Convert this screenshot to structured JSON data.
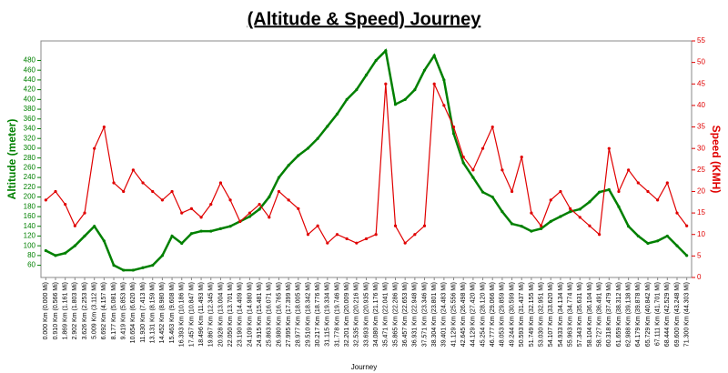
{
  "chart_data": {
    "type": "line",
    "title": "(Altitude & Speed) Journey",
    "x_label": "Journey",
    "y_label": "Altitude (meter)",
    "y2_label": "Speed (KMH)",
    "categories": [
      "0.000 Km (0.000 Mi)",
      "0.910 Km (0.566 Mi)",
      "1.869 Km (1.161 Mi)",
      "2.902 Km (1.803 Mi)",
      "3.626 Km (2.253 Mi)",
      "5.009 Km (3.112 Mi)",
      "6.692 Km (4.157 Mi)",
      "8.177 Km (5.081 Mi)",
      "9.419 Km (5.853 Mi)",
      "10.654 Km (6.620 Mi)",
      "11.930 Km (7.413 Mi)",
      "13.131 Km (8.159 Mi)",
      "14.452 Km (8.980 Mi)",
      "15.463 Km (9.608 Mi)",
      "16.393 Km (10.186 Mi)",
      "17.457 Km (10.847 Mi)",
      "18.496 Km (11.493 Mi)",
      "19.867 Km (12.345 Mi)",
      "20.928 Km (13.004 Mi)",
      "22.050 Km (13.701 Mi)",
      "23.190 Km (14.409 Mi)",
      "24.109 Km (14.980 Mi)",
      "24.915 Km (15.481 Mi)",
      "25.863 Km (16.071 Mi)",
      "26.980 Km (16.765 Mi)",
      "27.995 Km (17.399 Mi)",
      "28.977 Km (18.005 Mi)",
      "29.510 Km (18.342 Mi)",
      "30.217 Km (18.776 Mi)",
      "31.115 Km (19.334 Mi)",
      "31.778 Km (19.746 Mi)",
      "32.201 Km (20.009 Mi)",
      "32.535 Km (20.216 Mi)",
      "33.693 Km (20.935 Mi)",
      "34.080 Km (21.176 Mi)",
      "35.471 Km (22.041 Mi)",
      "35.865 Km (22.286 Mi)",
      "36.457 Km (22.653 Mi)",
      "36.931 Km (22.948 Mi)",
      "37.571 Km (23.346 Mi)",
      "38.304 Km (23.801 Mi)",
      "39.401 Km (24.483 Mi)",
      "41.129 Km (25.556 Mi)",
      "42.645 Km (26.498 Mi)",
      "44.129 Km (27.420 Mi)",
      "45.254 Km (28.120 Mi)",
      "46.777 Km (29.066 Mi)",
      "48.053 Km (29.859 Mi)",
      "49.244 Km (30.599 Mi)",
      "50.593 Km (31.437 Mi)",
      "51.749 Km (32.155 Mi)",
      "53.030 Km (32.951 Mi)",
      "54.107 Km (33.620 Mi)",
      "54.933 Km (34.134 Mi)",
      "55.963 Km (34.774 Mi)",
      "57.343 Km (35.631 Mi)",
      "58.104 Km (36.104 Mi)",
      "58.727 Km (36.491 Mi)",
      "60.318 Km (37.479 Mi)",
      "61.659 Km (38.312 Mi)",
      "62.988 Km (39.138 Mi)",
      "64.179 Km (39.878 Mi)",
      "65.729 Km (40.842 Mi)",
      "67.111 Km (41.701 Mi)",
      "68.444 Km (42.529 Mi)",
      "69.600 Km (43.248 Mi)",
      "71.300 Km (44.303 Mi)"
    ],
    "series": [
      {
        "name": "Altitude",
        "color": "#008000",
        "axis": "y",
        "values": [
          90,
          80,
          85,
          100,
          120,
          140,
          110,
          60,
          50,
          50,
          55,
          60,
          80,
          120,
          105,
          125,
          130,
          130,
          135,
          140,
          150,
          160,
          175,
          200,
          240,
          265,
          285,
          300,
          320,
          345,
          370,
          400,
          420,
          450,
          480,
          500,
          390,
          400,
          420,
          460,
          490,
          440,
          330,
          270,
          240,
          210,
          200,
          170,
          145,
          140,
          130,
          135,
          150,
          160,
          170,
          175,
          190,
          210,
          215,
          180,
          140,
          120,
          105,
          110,
          120,
          100,
          80
        ]
      },
      {
        "name": "Speed",
        "color": "#e00000",
        "axis": "y2",
        "values": [
          18,
          20,
          17,
          12,
          15,
          30,
          35,
          22,
          20,
          25,
          22,
          20,
          18,
          20,
          15,
          16,
          14,
          17,
          22,
          18,
          13,
          15,
          17,
          14,
          20,
          18,
          16,
          10,
          12,
          8,
          10,
          9,
          8,
          9,
          10,
          45,
          12,
          8,
          10,
          12,
          45,
          40,
          35,
          28,
          25,
          30,
          35,
          25,
          20,
          28,
          15,
          12,
          18,
          20,
          16,
          14,
          12,
          10,
          30,
          20,
          25,
          22,
          20,
          18,
          22,
          15,
          12
        ]
      }
    ],
    "ylim": [
      35,
      520
    ],
    "yticks": [
      60,
      80,
      100,
      120,
      140,
      160,
      180,
      200,
      220,
      240,
      260,
      280,
      300,
      320,
      340,
      360,
      380,
      400,
      420,
      440,
      460,
      480
    ],
    "y2lim": [
      0,
      55
    ],
    "y2ticks": [
      0,
      5,
      10,
      15,
      20,
      25,
      30,
      35,
      40,
      45,
      50,
      55
    ]
  }
}
